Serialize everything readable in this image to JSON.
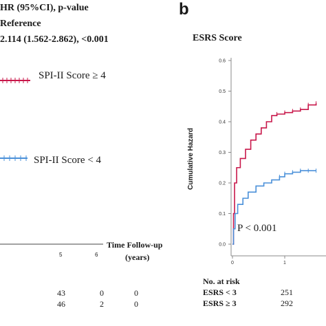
{
  "left_panel": {
    "hr_header": "HR (95%CI), p-value",
    "reference": "Reference",
    "hr_value": "2.114 (1.562-2.862), <0.001",
    "legend_high": "SPI-II Score ≥ 4",
    "legend_low": "SPI-II Score < 4",
    "x_ticks": [
      "5",
      "6"
    ],
    "x_label_line1": "Time Follow-up",
    "x_label_line2": "(years)",
    "risk_row1": [
      "43",
      "0",
      "0"
    ],
    "risk_row2": [
      "46",
      "2",
      "0"
    ],
    "colors": {
      "high": "#c8174a",
      "low": "#4a90d9"
    }
  },
  "right_panel": {
    "panel_label": "b",
    "p_value": "P < 0.001",
    "risk_title": "No. at risk",
    "risk_labels": [
      "ESRS < 3",
      "ESRS ≥ 3"
    ],
    "risk_values": [
      "251",
      "292"
    ]
  },
  "chart_data": {
    "type": "line",
    "title": "ESRS Score",
    "ylabel": "Cumulative Hazard",
    "xlabel": "",
    "xlim": [
      0,
      1.6
    ],
    "ylim": [
      0,
      0.6
    ],
    "x_ticks": [
      0,
      1
    ],
    "y_ticks": [
      0.0,
      0.1,
      0.2,
      0.3,
      0.4,
      0.5,
      0.6
    ],
    "series": [
      {
        "name": "ESRS ≥ 3",
        "color": "#c8174a",
        "points": [
          [
            0,
            0
          ],
          [
            0.02,
            0.1
          ],
          [
            0.04,
            0.2
          ],
          [
            0.08,
            0.25
          ],
          [
            0.15,
            0.28
          ],
          [
            0.25,
            0.31
          ],
          [
            0.35,
            0.34
          ],
          [
            0.45,
            0.36
          ],
          [
            0.55,
            0.38
          ],
          [
            0.65,
            0.4
          ],
          [
            0.75,
            0.42
          ],
          [
            0.85,
            0.425
          ],
          [
            1.0,
            0.43
          ],
          [
            1.15,
            0.435
          ],
          [
            1.3,
            0.44
          ],
          [
            1.45,
            0.455
          ],
          [
            1.6,
            0.46
          ]
        ]
      },
      {
        "name": "ESRS < 3",
        "color": "#4a90d9",
        "points": [
          [
            0,
            0
          ],
          [
            0.02,
            0.05
          ],
          [
            0.05,
            0.1
          ],
          [
            0.1,
            0.13
          ],
          [
            0.2,
            0.15
          ],
          [
            0.3,
            0.17
          ],
          [
            0.45,
            0.19
          ],
          [
            0.6,
            0.2
          ],
          [
            0.75,
            0.21
          ],
          [
            0.9,
            0.22
          ],
          [
            1.0,
            0.23
          ],
          [
            1.15,
            0.235
          ],
          [
            1.3,
            0.24
          ],
          [
            1.45,
            0.24
          ],
          [
            1.6,
            0.24
          ]
        ]
      }
    ]
  }
}
